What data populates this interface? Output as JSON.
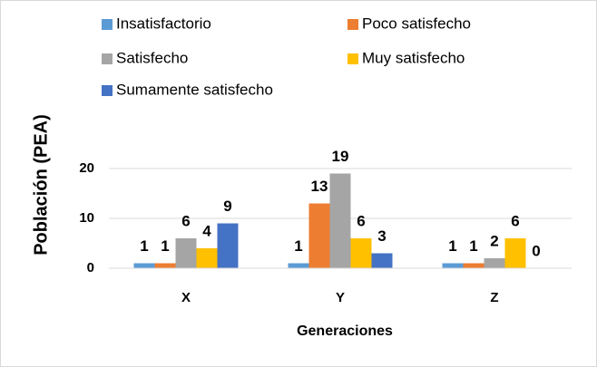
{
  "chart_data": {
    "type": "bar",
    "x_label": "Generaciones",
    "y_label": "Población (PEA)",
    "categories": [
      "X",
      "Y",
      "Z"
    ],
    "series": [
      {
        "name": "Insatisfactorio",
        "color": "#5B9BD5",
        "values": [
          1,
          1,
          1
        ]
      },
      {
        "name": "Poco satisfecho",
        "color": "#ED7D31",
        "values": [
          1,
          13,
          1
        ]
      },
      {
        "name": "Satisfecho",
        "color": "#A5A5A5",
        "values": [
          6,
          19,
          2
        ]
      },
      {
        "name": "Muy satisfecho",
        "color": "#FFC000",
        "values": [
          4,
          6,
          6
        ]
      },
      {
        "name": "Sumamente satisfecho",
        "color": "#4472C4",
        "values": [
          9,
          3,
          0
        ]
      }
    ],
    "ylim": [
      0,
      20
    ],
    "yticks": [
      0,
      10,
      20
    ],
    "grid": true
  }
}
